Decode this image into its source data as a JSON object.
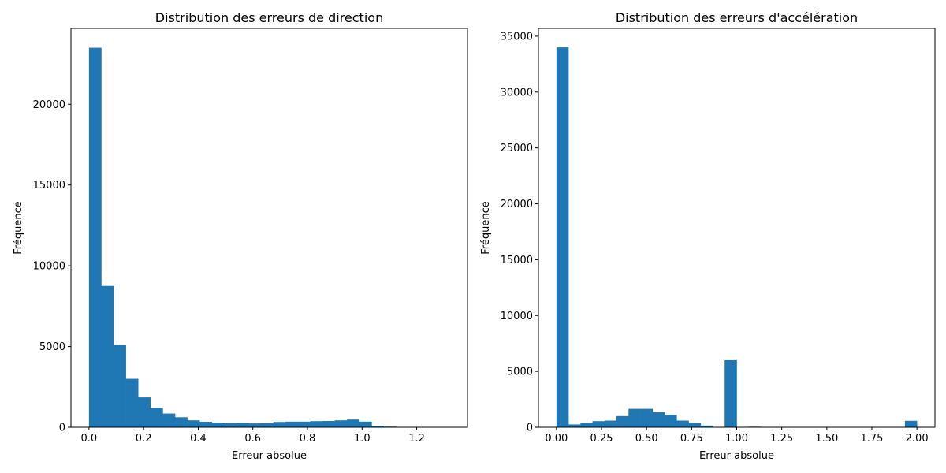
{
  "chart_data": [
    {
      "type": "bar",
      "title": "Distribution des erreurs de direction",
      "xlabel": "Erreur absolue",
      "ylabel": "Fréquence",
      "xlim": [
        -0.066,
        1.386
      ],
      "ylim": [
        0,
        24700
      ],
      "xticks": [
        0.0,
        0.2,
        0.4,
        0.6,
        0.8,
        1.0,
        1.2
      ],
      "xtick_labels": [
        "0.0",
        "0.2",
        "0.4",
        "0.6",
        "0.8",
        "1.0",
        "1.2"
      ],
      "yticks": [
        0,
        5000,
        10000,
        15000,
        20000
      ],
      "ytick_labels": [
        "0",
        "5000",
        "10000",
        "15000",
        "20000"
      ],
      "bin_width": 0.045,
      "color": "#1f77b4",
      "grid": false,
      "bins": [
        {
          "x": 0.0,
          "value": 23500
        },
        {
          "x": 0.045,
          "value": 8750
        },
        {
          "x": 0.09,
          "value": 5100
        },
        {
          "x": 0.135,
          "value": 3000
        },
        {
          "x": 0.18,
          "value": 1850
        },
        {
          "x": 0.225,
          "value": 1200
        },
        {
          "x": 0.27,
          "value": 850
        },
        {
          "x": 0.315,
          "value": 620
        },
        {
          "x": 0.36,
          "value": 430
        },
        {
          "x": 0.405,
          "value": 340
        },
        {
          "x": 0.45,
          "value": 290
        },
        {
          "x": 0.495,
          "value": 250
        },
        {
          "x": 0.54,
          "value": 270
        },
        {
          "x": 0.585,
          "value": 240
        },
        {
          "x": 0.63,
          "value": 250
        },
        {
          "x": 0.675,
          "value": 330
        },
        {
          "x": 0.72,
          "value": 350
        },
        {
          "x": 0.765,
          "value": 350
        },
        {
          "x": 0.81,
          "value": 380
        },
        {
          "x": 0.855,
          "value": 390
        },
        {
          "x": 0.9,
          "value": 430
        },
        {
          "x": 0.945,
          "value": 480
        },
        {
          "x": 0.99,
          "value": 350
        },
        {
          "x": 1.035,
          "value": 90
        },
        {
          "x": 1.08,
          "value": 40
        },
        {
          "x": 1.125,
          "value": 20
        },
        {
          "x": 1.17,
          "value": 10
        },
        {
          "x": 1.215,
          "value": 5
        },
        {
          "x": 1.26,
          "value": 3
        },
        {
          "x": 1.305,
          "value": 2
        }
      ]
    },
    {
      "type": "bar",
      "title": "Distribution des erreurs d'accélération",
      "xlabel": "Erreur absolue",
      "ylabel": "Fréquence",
      "xlim": [
        -0.1,
        2.1
      ],
      "ylim": [
        0,
        35700
      ],
      "xticks": [
        0.0,
        0.25,
        0.5,
        0.75,
        1.0,
        1.25,
        1.5,
        1.75,
        2.0
      ],
      "xtick_labels": [
        "0.00",
        "0.25",
        "0.50",
        "0.75",
        "1.00",
        "1.25",
        "1.50",
        "1.75",
        "2.00"
      ],
      "yticks": [
        0,
        5000,
        10000,
        15000,
        20000,
        25000,
        30000,
        35000
      ],
      "ytick_labels": [
        "0",
        "5000",
        "10000",
        "15000",
        "20000",
        "25000",
        "30000",
        "35000"
      ],
      "bin_width": 0.0667,
      "color": "#1f77b4",
      "grid": false,
      "bins": [
        {
          "x": 0.0,
          "value": 34000
        },
        {
          "x": 0.0667,
          "value": 250
        },
        {
          "x": 0.1333,
          "value": 400
        },
        {
          "x": 0.2,
          "value": 550
        },
        {
          "x": 0.2667,
          "value": 600
        },
        {
          "x": 0.3333,
          "value": 1000
        },
        {
          "x": 0.4,
          "value": 1650
        },
        {
          "x": 0.4667,
          "value": 1650
        },
        {
          "x": 0.5333,
          "value": 1350
        },
        {
          "x": 0.6,
          "value": 1100
        },
        {
          "x": 0.6667,
          "value": 600
        },
        {
          "x": 0.7333,
          "value": 400
        },
        {
          "x": 0.8,
          "value": 150
        },
        {
          "x": 0.8667,
          "value": 0
        },
        {
          "x": 0.9333,
          "value": 6000
        },
        {
          "x": 1.0,
          "value": 0
        },
        {
          "x": 1.0667,
          "value": 50
        },
        {
          "x": 1.1333,
          "value": 0
        },
        {
          "x": 1.2,
          "value": 0
        },
        {
          "x": 1.2667,
          "value": 0
        },
        {
          "x": 1.3333,
          "value": 0
        },
        {
          "x": 1.4,
          "value": 0
        },
        {
          "x": 1.4667,
          "value": 0
        },
        {
          "x": 1.5333,
          "value": 0
        },
        {
          "x": 1.6,
          "value": 0
        },
        {
          "x": 1.6667,
          "value": 0
        },
        {
          "x": 1.7333,
          "value": 0
        },
        {
          "x": 1.8,
          "value": 0
        },
        {
          "x": 1.8667,
          "value": 0
        },
        {
          "x": 1.9333,
          "value": 580
        }
      ]
    }
  ]
}
